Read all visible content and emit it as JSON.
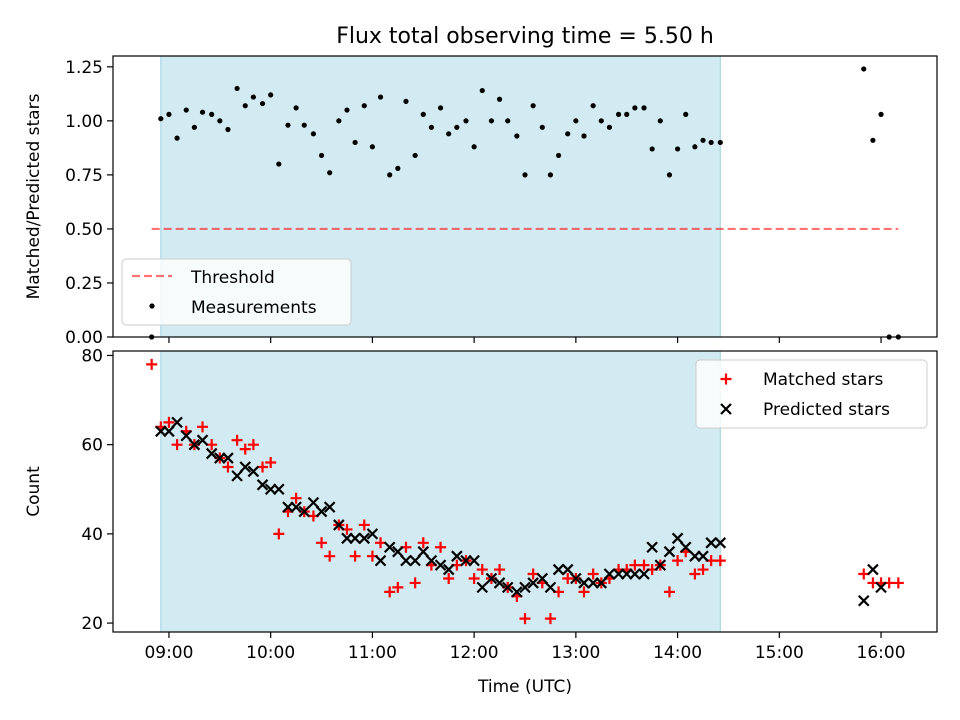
{
  "title": "Flux total observing time = 5.50 h",
  "colors": {
    "shade": "#add8e6",
    "threshold": "#ff0000",
    "measurement": "#000000",
    "matched": "#ff0000",
    "predicted": "#000000"
  },
  "chart_data": [
    {
      "type": "scatter",
      "name": "ratio-panel",
      "ylabel": "Matched/Predicted stars",
      "xlabel": "",
      "ylim": [
        0,
        1.3
      ],
      "xlim_hours": [
        8.45,
        16.55
      ],
      "yticks": [
        0,
        0.25,
        0.5,
        0.75,
        1.0,
        1.25
      ],
      "ytick_labels": [
        "0.00",
        "0.25",
        "0.50",
        "0.75",
        "1.00",
        "1.25"
      ],
      "shaded_interval_hours": [
        8.92,
        14.42
      ],
      "threshold": {
        "label": "Threshold",
        "value": 0.5,
        "x_range_hours": [
          8.83,
          16.17
        ]
      },
      "legend": {
        "position": "lower-left",
        "entries": [
          "Threshold",
          "Measurements"
        ]
      },
      "series": [
        {
          "name": "Measurements",
          "points": [
            [
              8.83,
              0.0
            ],
            [
              8.92,
              1.01
            ],
            [
              9.0,
              1.03
            ],
            [
              9.08,
              0.92
            ],
            [
              9.17,
              1.05
            ],
            [
              9.25,
              0.97
            ],
            [
              9.33,
              1.04
            ],
            [
              9.42,
              1.03
            ],
            [
              9.5,
              1.0
            ],
            [
              9.58,
              0.96
            ],
            [
              9.67,
              1.15
            ],
            [
              9.75,
              1.07
            ],
            [
              9.83,
              1.11
            ],
            [
              9.92,
              1.08
            ],
            [
              10.0,
              1.12
            ],
            [
              10.08,
              0.8
            ],
            [
              10.17,
              0.98
            ],
            [
              10.25,
              1.06
            ],
            [
              10.33,
              0.98
            ],
            [
              10.42,
              0.94
            ],
            [
              10.5,
              0.84
            ],
            [
              10.58,
              0.76
            ],
            [
              10.67,
              1.0
            ],
            [
              10.75,
              1.05
            ],
            [
              10.83,
              0.9
            ],
            [
              10.92,
              1.07
            ],
            [
              11.0,
              0.88
            ],
            [
              11.08,
              1.11
            ],
            [
              11.17,
              0.75
            ],
            [
              11.25,
              0.78
            ],
            [
              11.33,
              1.09
            ],
            [
              11.42,
              0.84
            ],
            [
              11.5,
              1.03
            ],
            [
              11.58,
              0.97
            ],
            [
              11.67,
              1.06
            ],
            [
              11.75,
              0.94
            ],
            [
              11.83,
              0.97
            ],
            [
              11.92,
              1.0
            ],
            [
              12.0,
              0.88
            ],
            [
              12.08,
              1.14
            ],
            [
              12.17,
              1.0
            ],
            [
              12.25,
              1.1
            ],
            [
              12.33,
              1.0
            ],
            [
              12.42,
              0.93
            ],
            [
              12.5,
              0.75
            ],
            [
              12.58,
              1.07
            ],
            [
              12.67,
              0.97
            ],
            [
              12.75,
              0.75
            ],
            [
              12.83,
              0.84
            ],
            [
              12.92,
              0.94
            ],
            [
              13.0,
              1.0
            ],
            [
              13.08,
              0.93
            ],
            [
              13.17,
              1.07
            ],
            [
              13.25,
              1.0
            ],
            [
              13.33,
              0.97
            ],
            [
              13.42,
              1.03
            ],
            [
              13.5,
              1.03
            ],
            [
              13.58,
              1.06
            ],
            [
              13.67,
              1.06
            ],
            [
              13.75,
              0.87
            ],
            [
              13.83,
              1.0
            ],
            [
              13.92,
              0.75
            ],
            [
              14.0,
              0.87
            ],
            [
              14.08,
              1.03
            ],
            [
              14.17,
              0.88
            ],
            [
              14.25,
              0.91
            ],
            [
              14.33,
              0.9
            ],
            [
              14.42,
              0.9
            ],
            [
              15.83,
              1.24
            ],
            [
              15.92,
              0.91
            ],
            [
              16.0,
              1.03
            ],
            [
              16.08,
              0.0
            ],
            [
              16.17,
              0.0
            ]
          ]
        }
      ]
    },
    {
      "type": "scatter",
      "name": "count-panel",
      "ylabel": "Count",
      "xlabel": "Time (UTC)",
      "ylim": [
        18,
        81
      ],
      "xlim_hours": [
        8.45,
        16.55
      ],
      "yticks": [
        20,
        40,
        60,
        80
      ],
      "ytick_labels": [
        "20",
        "40",
        "60",
        "80"
      ],
      "xticks_hours": [
        9,
        10,
        11,
        12,
        13,
        14,
        15,
        16
      ],
      "xtick_labels": [
        "09:00",
        "10:00",
        "11:00",
        "12:00",
        "13:00",
        "14:00",
        "15:00",
        "16:00"
      ],
      "shaded_interval_hours": [
        8.92,
        14.42
      ],
      "legend": {
        "position": "top-right",
        "entries": [
          "Matched stars",
          "Predicted stars"
        ]
      },
      "series": [
        {
          "name": "Matched stars",
          "points": [
            [
              8.83,
              78
            ],
            [
              8.92,
              64
            ],
            [
              9.0,
              65
            ],
            [
              9.08,
              60
            ],
            [
              9.17,
              63
            ],
            [
              9.25,
              60
            ],
            [
              9.33,
              64
            ],
            [
              9.42,
              60
            ],
            [
              9.5,
              57
            ],
            [
              9.58,
              55
            ],
            [
              9.67,
              61
            ],
            [
              9.75,
              59
            ],
            [
              9.83,
              60
            ],
            [
              9.92,
              55
            ],
            [
              10.0,
              56
            ],
            [
              10.08,
              40
            ],
            [
              10.17,
              45
            ],
            [
              10.25,
              48
            ],
            [
              10.33,
              45
            ],
            [
              10.42,
              44
            ],
            [
              10.5,
              38
            ],
            [
              10.58,
              35
            ],
            [
              10.67,
              42
            ],
            [
              10.75,
              41
            ],
            [
              10.83,
              35
            ],
            [
              10.92,
              42
            ],
            [
              11.0,
              35
            ],
            [
              11.08,
              38
            ],
            [
              11.17,
              27
            ],
            [
              11.25,
              28
            ],
            [
              11.33,
              37
            ],
            [
              11.42,
              29
            ],
            [
              11.5,
              38
            ],
            [
              11.58,
              33
            ],
            [
              11.67,
              37
            ],
            [
              11.75,
              30
            ],
            [
              11.83,
              33
            ],
            [
              11.92,
              34
            ],
            [
              12.0,
              30
            ],
            [
              12.08,
              32
            ],
            [
              12.17,
              30
            ],
            [
              12.25,
              32
            ],
            [
              12.33,
              28
            ],
            [
              12.42,
              26
            ],
            [
              12.5,
              21
            ],
            [
              12.58,
              31
            ],
            [
              12.67,
              29
            ],
            [
              12.75,
              21
            ],
            [
              12.83,
              27
            ],
            [
              12.92,
              30
            ],
            [
              13.0,
              30
            ],
            [
              13.08,
              27
            ],
            [
              13.17,
              31
            ],
            [
              13.25,
              29
            ],
            [
              13.33,
              30
            ],
            [
              13.42,
              32
            ],
            [
              13.5,
              32
            ],
            [
              13.58,
              33
            ],
            [
              13.67,
              33
            ],
            [
              13.75,
              32
            ],
            [
              13.83,
              33
            ],
            [
              13.92,
              27
            ],
            [
              14.0,
              34
            ],
            [
              14.08,
              36
            ],
            [
              14.17,
              31
            ],
            [
              14.25,
              32
            ],
            [
              14.33,
              34
            ],
            [
              14.42,
              34
            ],
            [
              15.83,
              31
            ],
            [
              15.92,
              29
            ],
            [
              16.0,
              29
            ],
            [
              16.08,
              29
            ],
            [
              16.17,
              29
            ]
          ]
        },
        {
          "name": "Predicted stars",
          "points": [
            [
              8.92,
              63
            ],
            [
              9.0,
              63
            ],
            [
              9.08,
              65
            ],
            [
              9.17,
              62
            ],
            [
              9.25,
              60
            ],
            [
              9.33,
              61
            ],
            [
              9.42,
              58
            ],
            [
              9.5,
              57
            ],
            [
              9.58,
              57
            ],
            [
              9.67,
              53
            ],
            [
              9.75,
              55
            ],
            [
              9.83,
              54
            ],
            [
              9.92,
              51
            ],
            [
              10.0,
              50
            ],
            [
              10.08,
              50
            ],
            [
              10.17,
              46
            ],
            [
              10.25,
              46
            ],
            [
              10.33,
              45
            ],
            [
              10.42,
              47
            ],
            [
              10.5,
              45
            ],
            [
              10.58,
              46
            ],
            [
              10.67,
              42
            ],
            [
              10.75,
              39
            ],
            [
              10.83,
              39
            ],
            [
              10.92,
              39
            ],
            [
              11.0,
              40
            ],
            [
              11.08,
              34
            ],
            [
              11.17,
              37
            ],
            [
              11.25,
              36
            ],
            [
              11.33,
              34
            ],
            [
              11.42,
              34
            ],
            [
              11.5,
              36
            ],
            [
              11.58,
              34
            ],
            [
              11.67,
              33
            ],
            [
              11.75,
              32
            ],
            [
              11.83,
              35
            ],
            [
              11.92,
              34
            ],
            [
              12.0,
              34
            ],
            [
              12.08,
              28
            ],
            [
              12.17,
              30
            ],
            [
              12.25,
              29
            ],
            [
              12.33,
              28
            ],
            [
              12.42,
              27
            ],
            [
              12.5,
              28
            ],
            [
              12.58,
              29
            ],
            [
              12.67,
              30
            ],
            [
              12.75,
              28
            ],
            [
              12.83,
              32
            ],
            [
              12.92,
              32
            ],
            [
              13.0,
              30
            ],
            [
              13.08,
              29
            ],
            [
              13.17,
              29
            ],
            [
              13.25,
              29
            ],
            [
              13.33,
              31
            ],
            [
              13.42,
              31
            ],
            [
              13.5,
              31
            ],
            [
              13.58,
              31
            ],
            [
              13.67,
              31
            ],
            [
              13.75,
              37
            ],
            [
              13.83,
              33
            ],
            [
              13.92,
              36
            ],
            [
              14.0,
              39
            ],
            [
              14.08,
              37
            ],
            [
              14.17,
              35
            ],
            [
              14.25,
              35
            ],
            [
              14.33,
              38
            ],
            [
              14.42,
              38
            ],
            [
              15.83,
              25
            ],
            [
              15.92,
              32
            ],
            [
              16.0,
              28
            ]
          ]
        }
      ]
    }
  ]
}
